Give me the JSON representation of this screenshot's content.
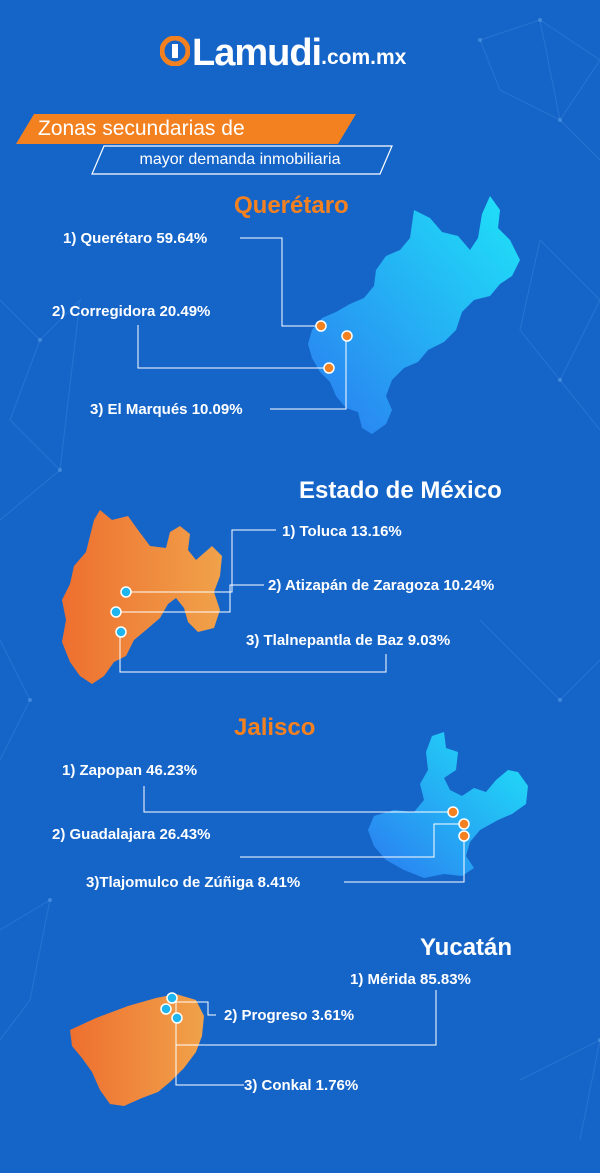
{
  "brand": {
    "name": "Lamudi",
    "domain": ".com.mx",
    "accent_color": "#f38120",
    "background_color": "#1565c9"
  },
  "header": {
    "title": "Zonas secundarias de",
    "subtitle": "mayor demanda inmobiliaria"
  },
  "sections": [
    {
      "state": "Querétaro",
      "zones": [
        {
          "label": "1) Querétaro 59.64%"
        },
        {
          "label": "2) Corregidora 20.49%"
        },
        {
          "label": "3) El Marqués 10.09%"
        }
      ]
    },
    {
      "state": "Estado de México",
      "zones": [
        {
          "label": "1) Toluca 13.16%"
        },
        {
          "label": "2) Atizapán de Zaragoza 10.24%"
        },
        {
          "label": "3) Tlalnepantla de Baz 9.03%"
        }
      ]
    },
    {
      "state": "Jalisco",
      "zones": [
        {
          "label": "1) Zapopan 46.23%"
        },
        {
          "label": "2) Guadalajara 26.43%"
        },
        {
          "label": "3)Tlajomulco de Zúñiga 8.41%"
        }
      ]
    },
    {
      "state": "Yucatán",
      "zones": [
        {
          "label": "1) Mérida 85.83%"
        },
        {
          "label": "2) Progreso 3.61%"
        },
        {
          "label": "3) Conkal 1.76%"
        }
      ]
    }
  ]
}
